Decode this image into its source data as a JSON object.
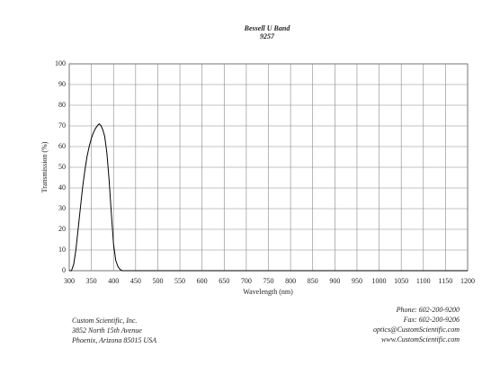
{
  "chart_data": {
    "type": "line",
    "title": "Bessell U Band",
    "subtitle": "9257",
    "x_label": "Wavelength (nm)",
    "y_label": "Transmission (%)",
    "x": [
      300,
      305,
      310,
      315,
      320,
      325,
      330,
      335,
      340,
      345,
      350,
      355,
      360,
      365,
      368,
      372,
      376,
      380,
      385,
      390,
      395,
      400,
      405,
      410,
      415,
      420,
      430,
      1200
    ],
    "values": [
      0,
      0,
      3,
      10,
      20,
      30,
      40,
      48,
      55,
      60,
      64,
      67,
      69,
      70.5,
      71,
      70,
      68,
      65,
      57,
      44,
      28,
      13,
      5,
      2,
      0.5,
      0,
      0,
      0
    ],
    "color": "#000000",
    "xlim": [
      300,
      1200
    ],
    "xticks": [
      300,
      350,
      400,
      450,
      500,
      550,
      600,
      650,
      700,
      750,
      800,
      850,
      900,
      950,
      1000,
      1050,
      1100,
      1150,
      1200
    ],
    "ylim": [
      0,
      100
    ],
    "yticks": [
      0,
      10,
      20,
      30,
      40,
      50,
      60,
      70,
      80,
      90,
      100
    ],
    "grid": true
  },
  "footer": {
    "left": [
      "Custom Scientific, Inc.",
      "3852 North 15th Avenue",
      "Phoenix, Arizona 85015 USA"
    ],
    "right": [
      "Phone:  602-200-9200",
      "Fax:  602-200-9206",
      "optics@CustomScientific.com",
      "www.CustomScientific.com"
    ]
  }
}
